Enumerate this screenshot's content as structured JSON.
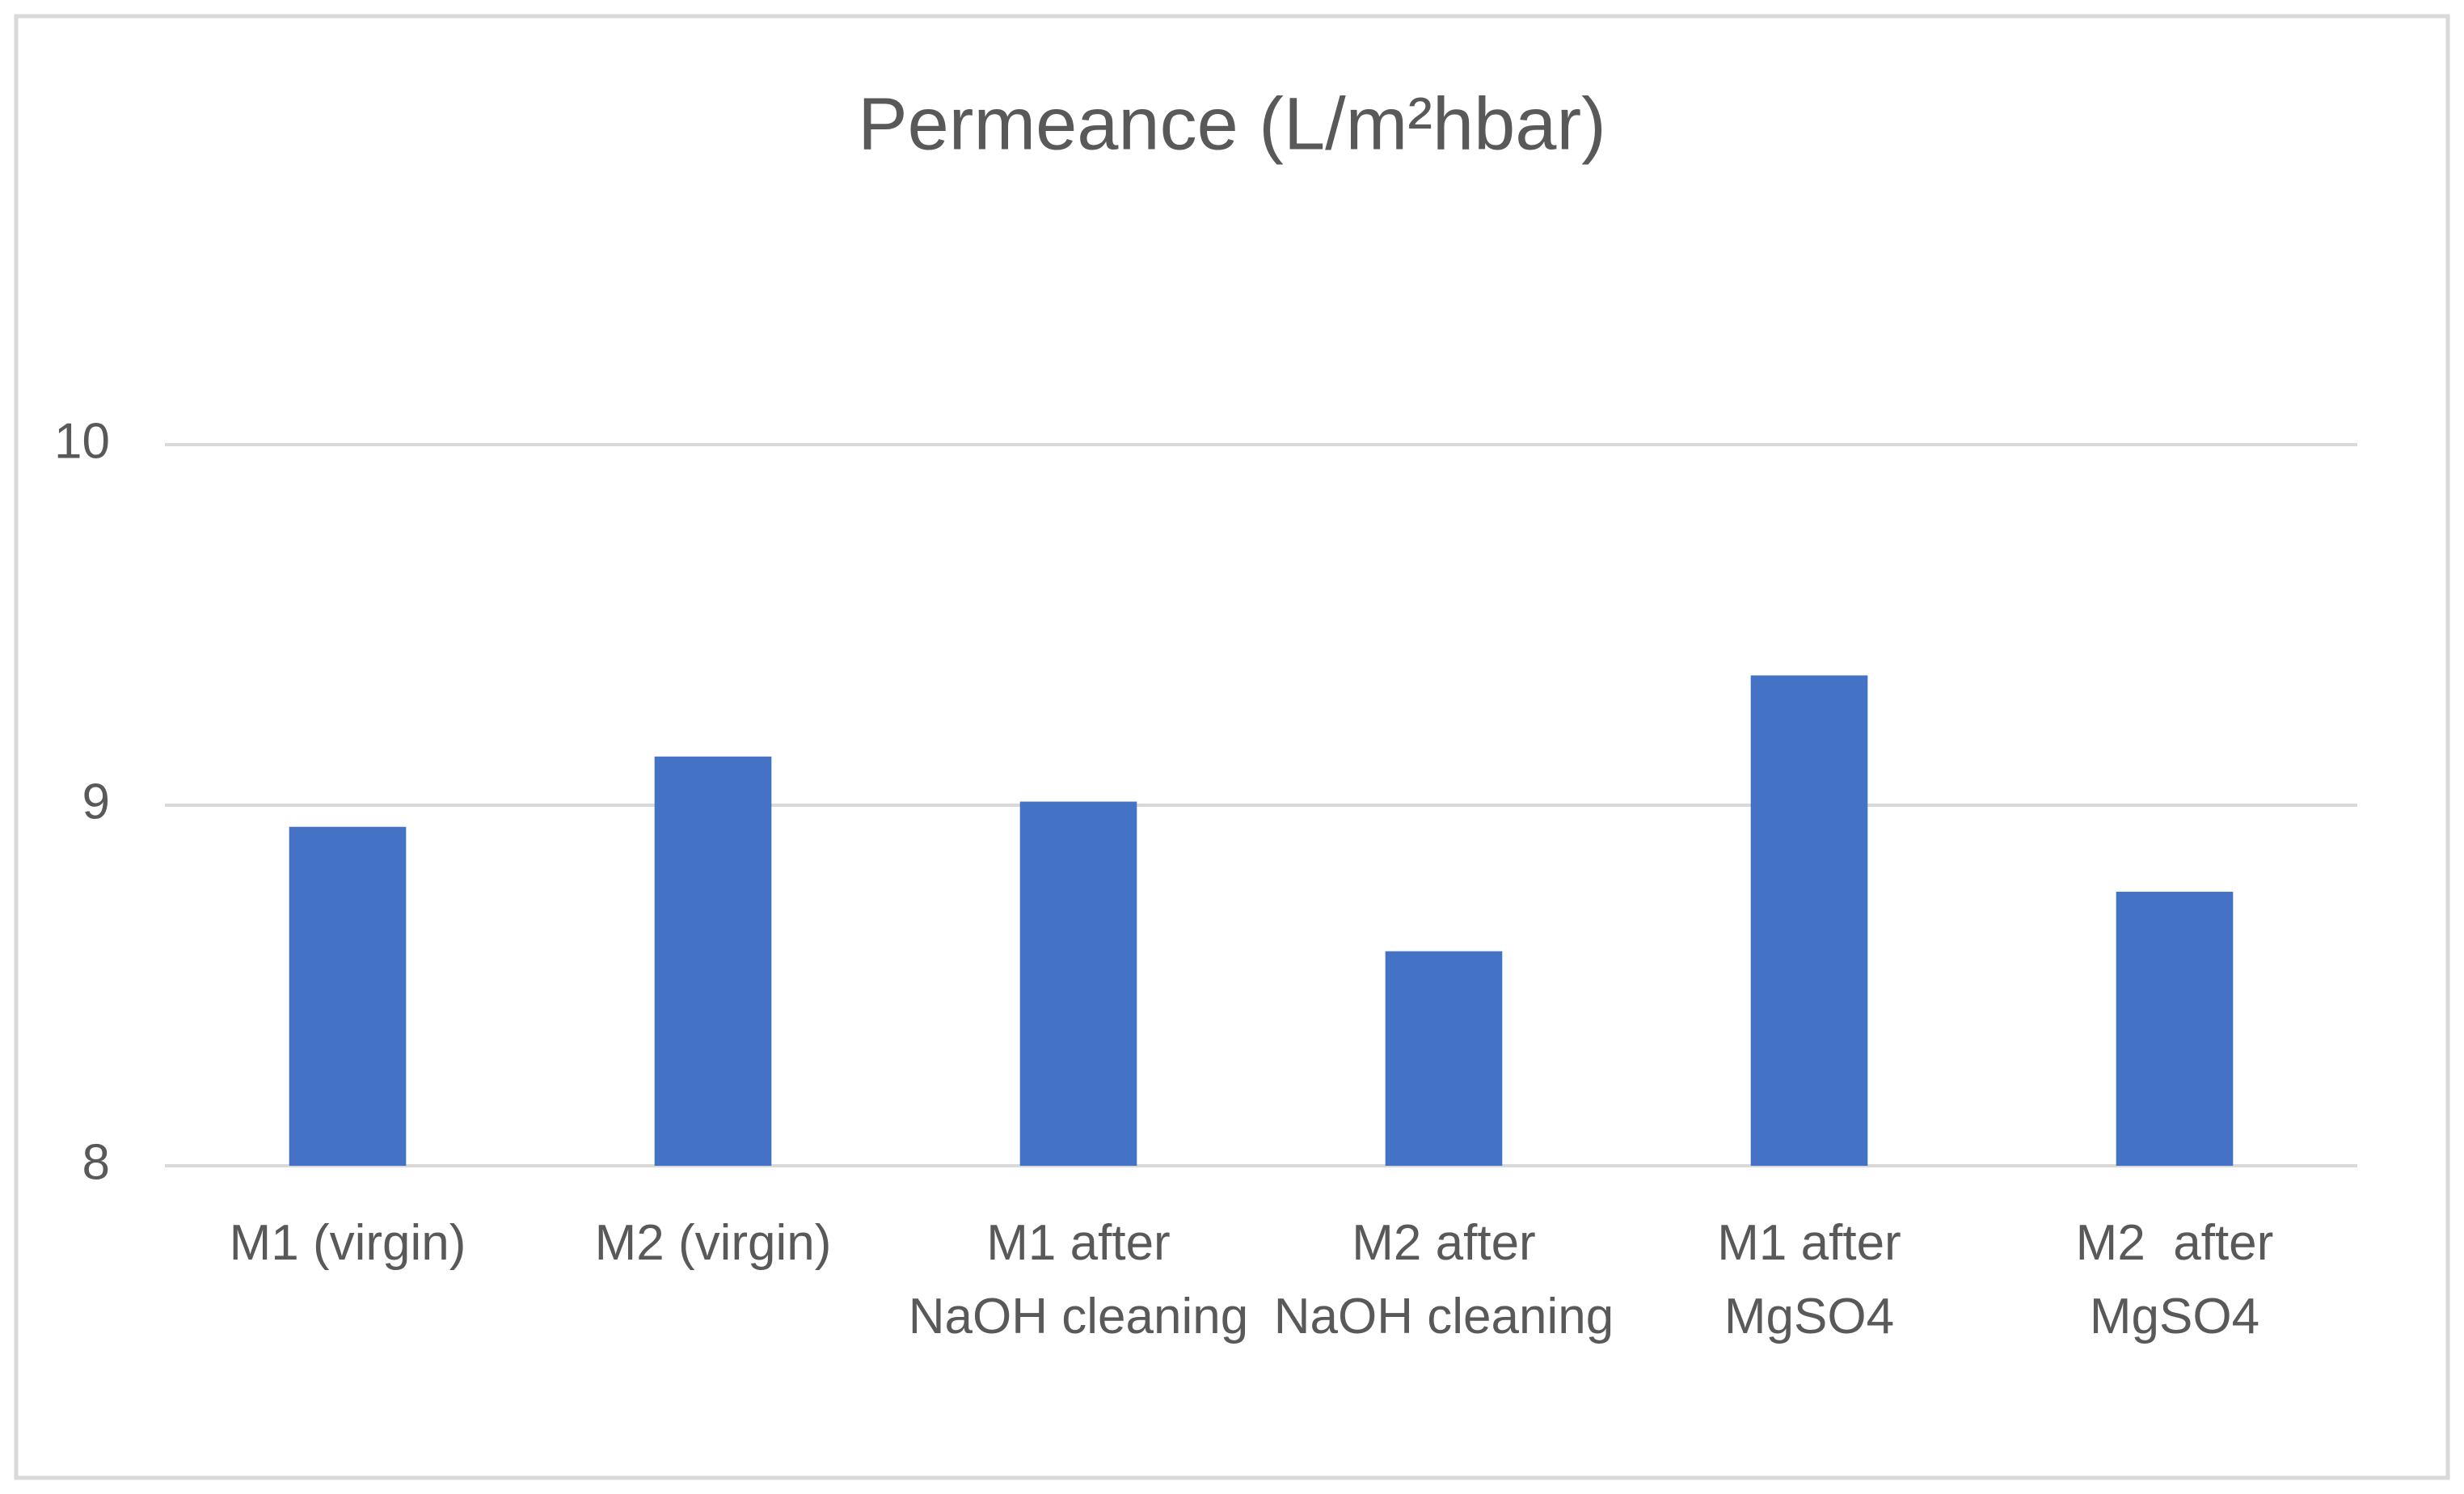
{
  "chart_data": {
    "type": "bar",
    "title": "Permeance (L/m²hbar)",
    "categories": [
      [
        "M1 (virgin)"
      ],
      [
        "M2 (virgin)"
      ],
      [
        "M1 after",
        "NaOH cleaning"
      ],
      [
        "M2 after",
        "NaOH cleaning"
      ],
      [
        "M1 after",
        "MgSO4"
      ],
      [
        "M2  after",
        "MgSO4"
      ]
    ],
    "values": [
      8.94,
      9.135,
      9.01,
      8.595,
      9.36,
      8.76
    ],
    "color": "#4472c4",
    "ylim": [
      8,
      10
    ],
    "yticks": [
      8,
      9,
      10
    ],
    "grid": true
  }
}
